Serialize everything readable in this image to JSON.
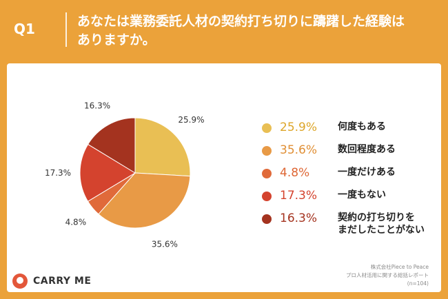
{
  "header": {
    "question_number": "Q1",
    "question_line1": "あなたは業務委託人材の契約打ち切りに躊躇した経験は",
    "question_line2": "ありますか。"
  },
  "chart_data": {
    "type": "pie",
    "start": "top",
    "direction": "clockwise",
    "slices": [
      {
        "label": "何度もある",
        "value": 25.9,
        "display": "25.9%",
        "color": "#E9BF54",
        "text_color": "#DDA62A"
      },
      {
        "label": "数回程度ある",
        "value": 35.6,
        "display": "35.6%",
        "color": "#E89A46",
        "text_color": "#E08F35"
      },
      {
        "label": "一度だけある",
        "value": 4.8,
        "display": "4.8%",
        "color": "#E06A3A",
        "text_color": "#DE6634"
      },
      {
        "label": "一度もない",
        "value": 17.3,
        "display": "17.3%",
        "color": "#D4432E",
        "text_color": "#D4432E"
      },
      {
        "label": "契約の打ち切りを",
        "label_line2": "まだしたことがない",
        "value": 16.3,
        "display": "16.3%",
        "color": "#A4331F",
        "text_color": "#A4331F"
      }
    ]
  },
  "footer": {
    "logo_text": "CARRY ME",
    "source_line1": "株式会社Piece to Peace",
    "source_line2": "プロ人材活用に関する総括レポート",
    "source_line3": "(n=104)"
  }
}
